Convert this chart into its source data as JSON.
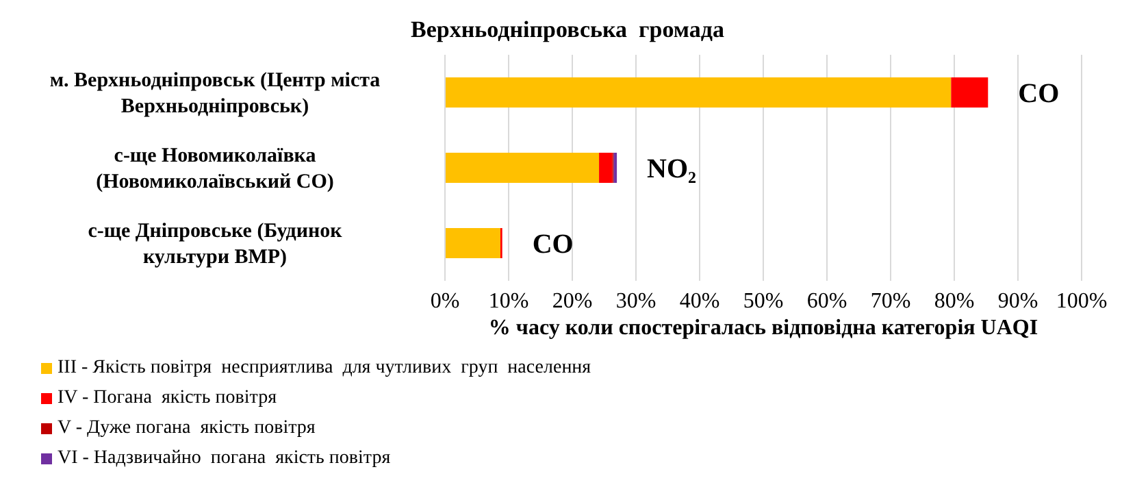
{
  "chart_data": {
    "type": "bar",
    "orientation": "horizontal",
    "stacked": true,
    "title": "Верхньодніпровська  громада",
    "xlabel": "% часу коли спостерігалась відповідна категорія UAQI",
    "categories": [
      "м. Верхньодніпровськ (Центр міста Верхньодніпровськ)",
      "с-ще Новомиколаївка (Новомиколаївський СО)",
      "с-ще Дніпровське (Будинок культури ВМР)"
    ],
    "series": [
      {
        "name": "III - Якість повітря  несприятлива  для чутливих  груп  населення",
        "color": "#ffc000",
        "values": [
          79.5,
          24.2,
          8.7
        ]
      },
      {
        "name": "IV - Погана  якість повітря",
        "color": "#ff0000",
        "values": [
          5.8,
          2.1,
          0.3
        ]
      },
      {
        "name": "V - Дуже погана  якість повітря",
        "color": "#c00000",
        "values": [
          0,
          0.2,
          0
        ]
      },
      {
        "name": "VI - Надзвичайно  погана  якість повітря",
        "color": "#7030a0",
        "values": [
          0,
          0.5,
          0
        ]
      }
    ],
    "xlim": [
      0,
      100
    ],
    "xticks": [
      {
        "value": 0,
        "label": "0%"
      },
      {
        "value": 10,
        "label": "10%"
      },
      {
        "value": 20,
        "label": "20%"
      },
      {
        "value": 30,
        "label": "30%"
      },
      {
        "value": 40,
        "label": "40%"
      },
      {
        "value": 50,
        "label": "50%"
      },
      {
        "value": 60,
        "label": "60%"
      },
      {
        "value": 70,
        "label": "70%"
      },
      {
        "value": 80,
        "label": "80%"
      },
      {
        "value": 90,
        "label": "90%"
      },
      {
        "value": 100,
        "label": "100%"
      }
    ],
    "grid": "x",
    "legend": "bottom",
    "annotations": [
      {
        "text": "CO",
        "x": 85.3,
        "y": "м. Верхньодніпровськ (Центр міста Верхньодніпровськ)"
      },
      {
        "text": "NO₂",
        "x": 27,
        "y": "с-ще Новомиколаївка (Новомиколаївський СО)"
      },
      {
        "text": "CO",
        "x": 9,
        "y": "с-ще Дніпровське (Будинок культури ВМР)"
      }
    ]
  }
}
